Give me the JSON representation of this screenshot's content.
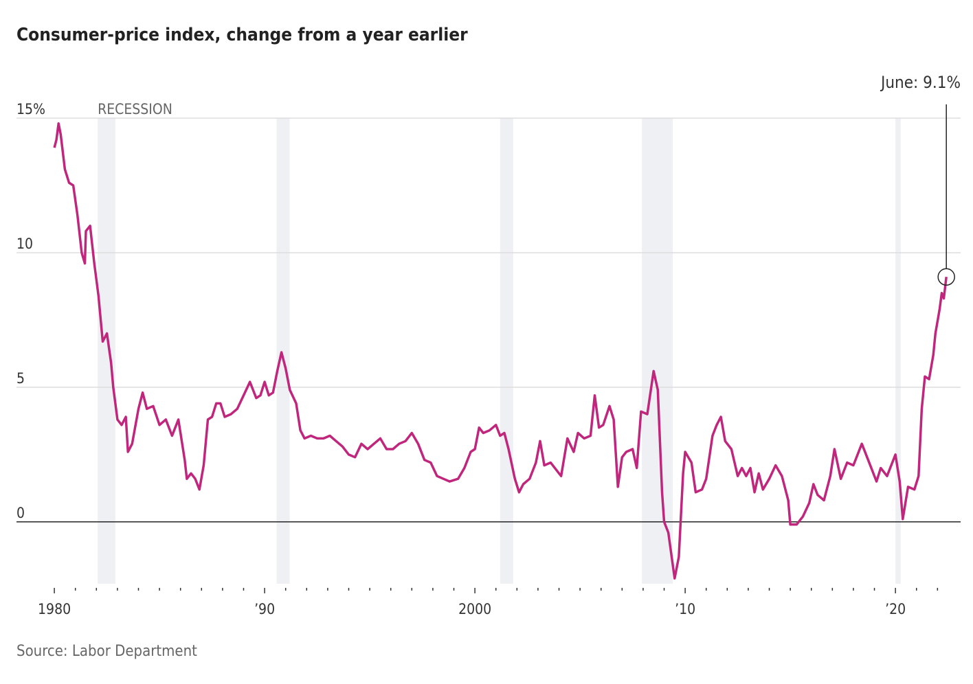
{
  "chart_data": {
    "type": "line",
    "title": "Consumer-price index, change from a year earlier",
    "source": "Source: Labor Department",
    "recession_label": "RECESSION",
    "recessions": [
      [
        1982.06,
        1982.9
      ],
      [
        1990.57,
        1991.19
      ],
      [
        2001.2,
        2001.82
      ],
      [
        2007.94,
        2009.41
      ],
      [
        2020.0,
        2020.25
      ]
    ],
    "x": [
      1980.0,
      1980.1,
      1980.2,
      1980.3,
      1980.5,
      1980.7,
      1980.9,
      1981.1,
      1981.3,
      1981.45,
      1981.5,
      1981.7,
      1981.9,
      1982.1,
      1982.3,
      1982.5,
      1982.7,
      1982.8,
      1983.0,
      1983.2,
      1983.4,
      1983.5,
      1983.7,
      1984.0,
      1984.2,
      1984.4,
      1984.7,
      1985.0,
      1985.3,
      1985.6,
      1985.9,
      1986.2,
      1986.3,
      1986.5,
      1986.7,
      1986.9,
      1987.1,
      1987.3,
      1987.5,
      1987.7,
      1987.9,
      1988.1,
      1988.4,
      1988.7,
      1989.0,
      1989.3,
      1989.6,
      1989.8,
      1990.0,
      1990.2,
      1990.4,
      1990.6,
      1990.8,
      1991.0,
      1991.2,
      1991.5,
      1991.7,
      1991.9,
      1992.2,
      1992.5,
      1992.8,
      1993.1,
      1993.4,
      1993.7,
      1994.0,
      1994.3,
      1994.6,
      1994.9,
      1995.2,
      1995.5,
      1995.8,
      1996.1,
      1996.4,
      1996.7,
      1997.0,
      1997.3,
      1997.6,
      1997.9,
      1998.2,
      1998.5,
      1998.8,
      1999.2,
      1999.5,
      1999.8,
      2000.0,
      2000.2,
      2000.4,
      2000.7,
      2001.0,
      2001.2,
      2001.4,
      2001.6,
      2001.9,
      2002.1,
      2002.3,
      2002.6,
      2002.9,
      2003.1,
      2003.3,
      2003.6,
      2003.9,
      2004.1,
      2004.4,
      2004.7,
      2004.9,
      2005.2,
      2005.5,
      2005.7,
      2005.9,
      2006.1,
      2006.4,
      2006.6,
      2006.8,
      2007.0,
      2007.2,
      2007.5,
      2007.7,
      2007.9,
      2008.2,
      2008.5,
      2008.7,
      2008.9,
      2009.0,
      2009.2,
      2009.5,
      2009.7,
      2009.9,
      2010.0,
      2010.3,
      2010.5,
      2010.8,
      2011.0,
      2011.3,
      2011.5,
      2011.7,
      2011.9,
      2012.2,
      2012.5,
      2012.7,
      2012.9,
      2013.1,
      2013.3,
      2013.5,
      2013.7,
      2014.0,
      2014.3,
      2014.6,
      2014.9,
      2015.0,
      2015.3,
      2015.6,
      2015.9,
      2016.1,
      2016.3,
      2016.6,
      2016.9,
      2017.1,
      2017.4,
      2017.7,
      2018.0,
      2018.4,
      2018.7,
      2018.9,
      2019.1,
      2019.3,
      2019.6,
      2019.9,
      2020.0,
      2020.2,
      2020.35,
      2020.6,
      2020.9,
      2021.1,
      2021.25,
      2021.4,
      2021.6,
      2021.8,
      2021.9,
      2022.1,
      2022.2,
      2022.3,
      2022.42
    ],
    "series": [
      {
        "name": "CPI",
        "color": "#c0267c",
        "values": [
          13.9,
          14.2,
          14.8,
          14.4,
          13.1,
          12.6,
          12.5,
          11.4,
          10.0,
          9.6,
          10.8,
          11.0,
          9.6,
          8.4,
          6.7,
          7.0,
          5.9,
          5.0,
          3.8,
          3.6,
          3.9,
          2.6,
          2.9,
          4.2,
          4.8,
          4.2,
          4.3,
          3.6,
          3.8,
          3.2,
          3.8,
          2.3,
          1.6,
          1.8,
          1.6,
          1.2,
          2.1,
          3.8,
          3.9,
          4.4,
          4.4,
          3.9,
          4.0,
          4.2,
          4.7,
          5.2,
          4.6,
          4.7,
          5.2,
          4.7,
          4.8,
          5.6,
          6.3,
          5.7,
          4.9,
          4.4,
          3.4,
          3.1,
          3.2,
          3.1,
          3.1,
          3.2,
          3.0,
          2.8,
          2.5,
          2.4,
          2.9,
          2.7,
          2.9,
          3.1,
          2.7,
          2.7,
          2.9,
          3.0,
          3.3,
          2.9,
          2.3,
          2.2,
          1.7,
          1.6,
          1.5,
          1.6,
          2.0,
          2.6,
          2.7,
          3.5,
          3.3,
          3.4,
          3.6,
          3.2,
          3.3,
          2.7,
          1.6,
          1.1,
          1.4,
          1.6,
          2.2,
          3.0,
          2.1,
          2.2,
          1.9,
          1.7,
          3.1,
          2.6,
          3.3,
          3.1,
          3.2,
          4.7,
          3.5,
          3.6,
          4.3,
          3.8,
          1.3,
          2.4,
          2.6,
          2.7,
          2.0,
          4.1,
          4.0,
          5.6,
          4.9,
          1.1,
          0.0,
          -0.4,
          -2.1,
          -1.3,
          1.8,
          2.6,
          2.2,
          1.1,
          1.2,
          1.6,
          3.2,
          3.6,
          3.9,
          3.0,
          2.7,
          1.7,
          2.0,
          1.7,
          2.0,
          1.1,
          1.8,
          1.2,
          1.6,
          2.1,
          1.7,
          0.8,
          -0.1,
          -0.1,
          0.2,
          0.7,
          1.4,
          1.0,
          0.8,
          1.7,
          2.7,
          1.6,
          2.2,
          2.1,
          2.9,
          2.3,
          1.9,
          1.5,
          2.0,
          1.7,
          2.3,
          2.5,
          1.5,
          0.1,
          1.3,
          1.2,
          1.7,
          4.2,
          5.4,
          5.3,
          6.2,
          7.0,
          7.9,
          8.5,
          8.3,
          9.1
        ]
      }
    ],
    "annotation": {
      "x": 2022.42,
      "value": 9.1,
      "label": "June: 9.1%"
    },
    "xlim": [
      1978.2,
      2023.1
    ],
    "ylim": [
      -2.3,
      15
    ],
    "xticks": [
      {
        "value": 1980,
        "label": "1980"
      },
      {
        "value": 1990,
        "label": "’90"
      },
      {
        "value": 2000,
        "label": "2000"
      },
      {
        "value": 2010,
        "label": "’10"
      },
      {
        "value": 2020,
        "label": "’20"
      }
    ],
    "xminorticks": [
      1981,
      1982,
      1983,
      1984,
      1985,
      1986,
      1987,
      1988,
      1989,
      1991,
      1992,
      1993,
      1994,
      1995,
      1996,
      1997,
      1998,
      1999,
      2001,
      2002,
      2003,
      2004,
      2005,
      2006,
      2007,
      2008,
      2009,
      2011,
      2012,
      2013,
      2014,
      2015,
      2016,
      2017,
      2018,
      2019,
      2021,
      2022
    ],
    "yticks": [
      {
        "value": 15,
        "label": "15%"
      },
      10,
      5,
      0
    ],
    "grid": true
  }
}
